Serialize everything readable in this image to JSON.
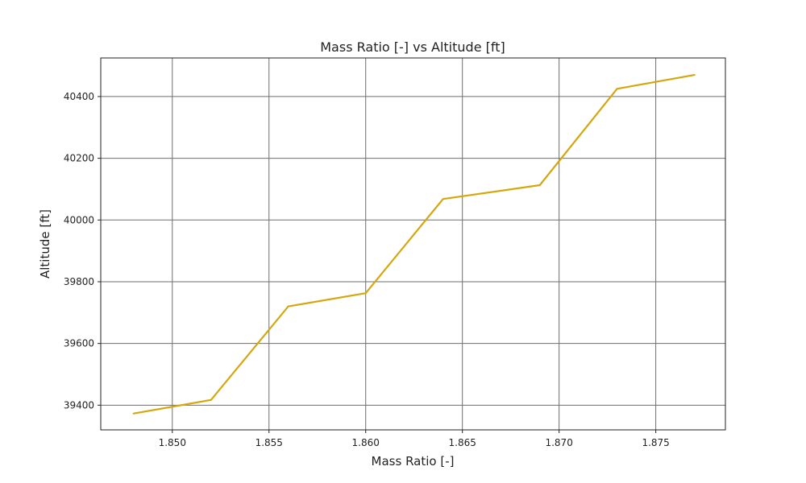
{
  "chart_data": {
    "type": "line",
    "title": "Mass Ratio [-] vs Altitude [ft]",
    "xlabel": "Mass Ratio [-]",
    "ylabel": "Altitude [ft]",
    "xlim": [
      1.8463,
      1.8786
    ],
    "ylim": [
      39320,
      40525
    ],
    "xticks": [
      1.85,
      1.855,
      1.86,
      1.865,
      1.87,
      1.875
    ],
    "xtick_labels": [
      "1.850",
      "1.855",
      "1.860",
      "1.865",
      "1.870",
      "1.875"
    ],
    "yticks": [
      39400,
      39600,
      39800,
      40000,
      40200,
      40400
    ],
    "ytick_labels": [
      "39400",
      "39600",
      "39800",
      "40000",
      "40200",
      "40400"
    ],
    "grid": true,
    "series": [
      {
        "color": "#d4a70f",
        "x": [
          1.848,
          1.852,
          1.856,
          1.86,
          1.864,
          1.869,
          1.873,
          1.877
        ],
        "y": [
          39373,
          39417,
          39720,
          39763,
          40068,
          40113,
          40425,
          40470
        ]
      }
    ]
  }
}
